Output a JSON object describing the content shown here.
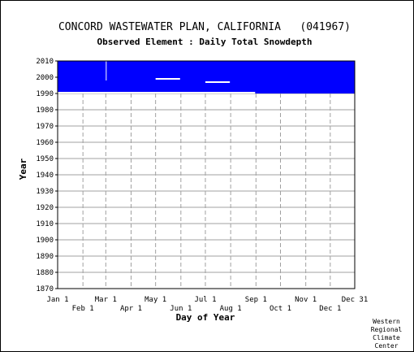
{
  "chart_data": {
    "type": "bar",
    "title": "CONCORD WASTEWATER PLAN, CALIFORNIA   (041967)",
    "subtitle": "Observed Element : Daily Total Snowdepth",
    "xlabel": "Day of Year",
    "ylabel": "Year",
    "ylim": [
      1870,
      2010
    ],
    "yticks": [
      1870,
      1880,
      1890,
      1900,
      1910,
      1920,
      1930,
      1940,
      1950,
      1960,
      1970,
      1980,
      1990,
      2000,
      2010
    ],
    "xticks_top": [
      "Jan 1",
      "Mar 1",
      "May 1",
      "Jul 1",
      "Sep 1",
      "Nov 1",
      "Dec 31"
    ],
    "xticks_bottom": [
      "Feb 1",
      "Apr 1",
      "Jun 1",
      "Aug 1",
      "Oct 1",
      "Dec 1"
    ],
    "xtick_days_top": [
      1,
      60,
      121,
      182,
      244,
      305,
      365
    ],
    "xtick_days_bottom": [
      32,
      91,
      152,
      213,
      274,
      335
    ],
    "grid": true,
    "record_color": "#0000ff",
    "gap_color": "#ffffff",
    "record_block": {
      "start_day": 1,
      "end_day": 365,
      "start_year": 1990,
      "end_year": 2010
    },
    "pre_record_gap": {
      "start_day": 1,
      "end_day": 243,
      "start_year": 1990,
      "end_year": 1991
    },
    "missing_segments": [
      {
        "start_day": 60,
        "end_day": 61,
        "start_year": 1998,
        "end_year": 2010
      },
      {
        "start_day": 121,
        "end_day": 151,
        "year": 1999
      },
      {
        "start_day": 182,
        "end_day": 212,
        "year": 1997
      }
    ]
  },
  "credit": [
    "Western",
    "Regional",
    "Climate",
    "Center"
  ]
}
